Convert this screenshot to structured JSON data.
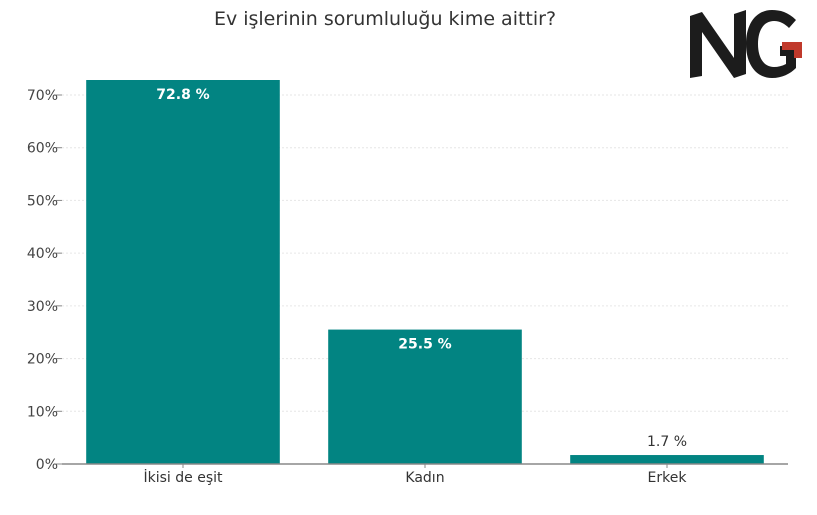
{
  "colors": {
    "bar": "#028482",
    "grid": "#e6e6e6",
    "axis": "#888888",
    "logo_dark": "#1c1c1c",
    "logo_red": "#c0392b"
  },
  "logo": {
    "text": "NG"
  },
  "chart_data": {
    "type": "bar",
    "title": "Ev işlerinin sorumluluğu kime aittir?",
    "xlabel": "",
    "ylabel": "",
    "categories": [
      "İkisi de eşit",
      "Kadın",
      "Erkek"
    ],
    "values": [
      72.8,
      25.5,
      1.7
    ],
    "data_labels": [
      "72.8 %",
      "25.5 %",
      "1.7 %"
    ],
    "ylim": [
      0,
      70
    ],
    "yticks": [
      0,
      10,
      20,
      30,
      40,
      50,
      60,
      70
    ],
    "ytick_labels": [
      "0%",
      "10%",
      "20%",
      "30%",
      "40%",
      "50%",
      "60%",
      "70%"
    ],
    "grid": true,
    "legend": "none"
  }
}
